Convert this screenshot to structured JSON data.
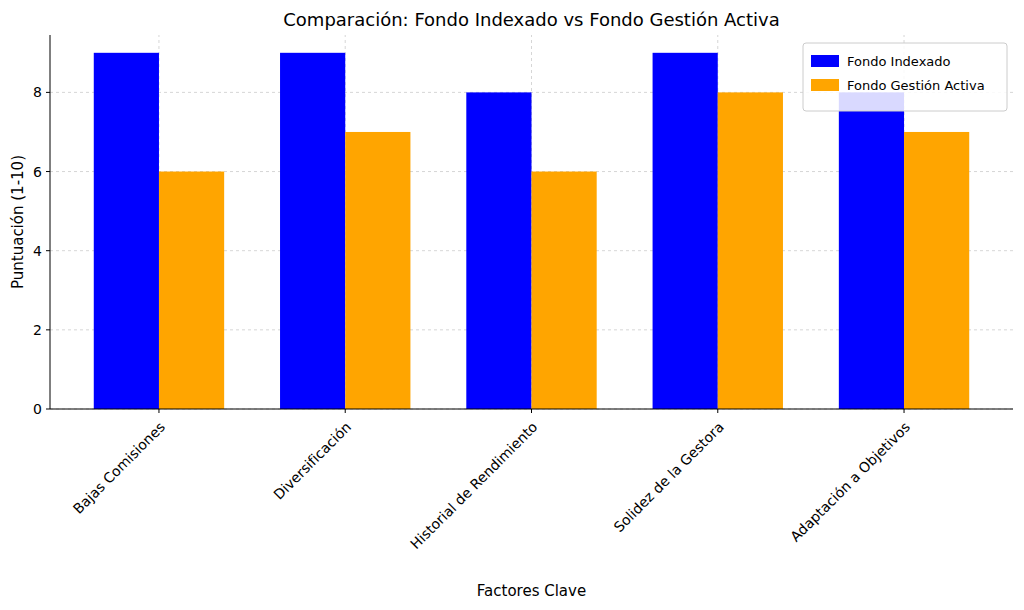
{
  "chart_data": {
    "type": "bar",
    "title": "Comparación: Fondo Indexado vs Fondo Gestión Activa",
    "x_label": "Factores Clave",
    "y_label": "Puntuación (1-10)",
    "categories": [
      "Bajas Comisiones",
      "Diversificación",
      "Historial de Rendimiento",
      "Solidez de la Gestora",
      "Adaptación a Objetivos"
    ],
    "series": [
      {
        "name": "Fondo Indexado",
        "color": "#0000ff",
        "values": [
          9,
          9,
          8,
          9,
          8
        ]
      },
      {
        "name": "Fondo Gestión Activa",
        "color": "#ffa500",
        "values": [
          6,
          7,
          6,
          8,
          7
        ]
      }
    ],
    "ylim": [
      0,
      9.45
    ],
    "yticks": [
      0,
      2,
      4,
      6,
      8
    ],
    "grid": true,
    "legend": "upper right"
  }
}
